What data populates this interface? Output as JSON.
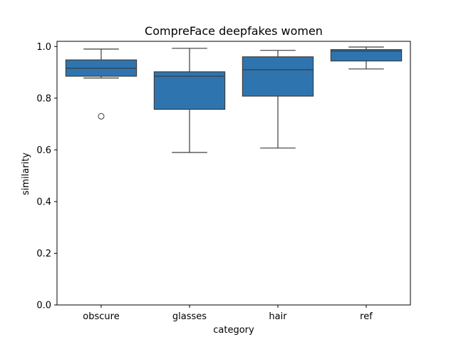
{
  "chart_data": {
    "type": "box",
    "title": "CompreFace deepfakes women",
    "xlabel": "category",
    "ylabel": "similarity",
    "categories": [
      "obscure",
      "glasses",
      "hair",
      "ref"
    ],
    "ylim": [
      0,
      1.02
    ],
    "yticks": [
      0.0,
      0.2,
      0.4,
      0.6,
      0.8,
      1.0
    ],
    "ytick_labels": [
      "0.0",
      "0.2",
      "0.4",
      "0.6",
      "0.8",
      "1.0"
    ],
    "boxes": [
      {
        "category": "obscure",
        "whisker_low": 0.878,
        "q1": 0.885,
        "median": 0.916,
        "q3": 0.948,
        "whisker_high": 0.99,
        "outliers": [
          0.73
        ]
      },
      {
        "category": "glasses",
        "whisker_low": 0.59,
        "q1": 0.757,
        "median": 0.885,
        "q3": 0.902,
        "whisker_high": 0.993,
        "outliers": []
      },
      {
        "category": "hair",
        "whisker_low": 0.607,
        "q1": 0.808,
        "median": 0.91,
        "q3": 0.96,
        "whisker_high": 0.985,
        "outliers": []
      },
      {
        "category": "ref",
        "whisker_low": 0.913,
        "q1": 0.944,
        "median": 0.982,
        "q3": 0.988,
        "whisker_high": 0.998,
        "outliers": []
      }
    ],
    "colors": {
      "box_fill": "#2e75b0",
      "line": "#3d3d3d",
      "axis": "#000000"
    },
    "grid": false,
    "legend": "none"
  }
}
